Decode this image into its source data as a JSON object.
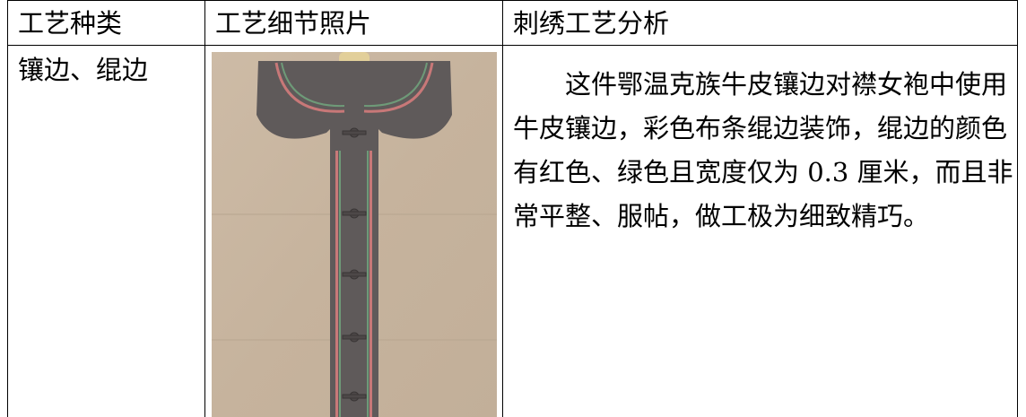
{
  "table": {
    "header": [
      "工艺种类",
      "工艺细节照片",
      "刺绣工艺分析"
    ],
    "rows": [
      [
        "镶边、绲边",
        "这件鄂温克族牛皮镶边对襟女袍中使用牛皮镶边，彩色布条绲边装饰，绲边的颜色有红色、绿色且宽度仅为 0.3 厘米，而且非常平整、服帖，做工极为细致精巧。"
      ]
    ]
  }
}
